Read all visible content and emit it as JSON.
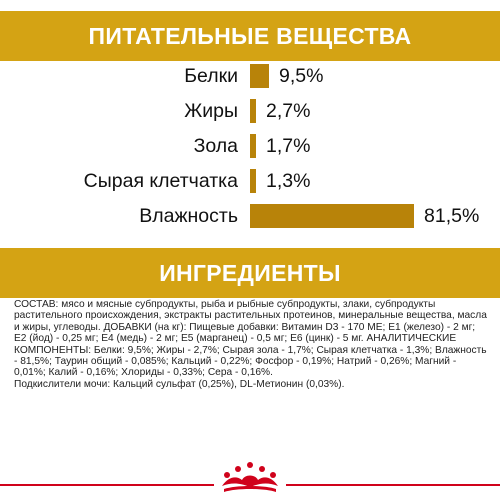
{
  "sections": {
    "nutrients_title": "ПИТАТЕЛЬНЫЕ ВЕЩЕСТВА",
    "ingredients_title": "ИНГРЕДИЕНТЫ"
  },
  "nutrients": [
    {
      "label": "Белки",
      "value_text": "9,5%",
      "value": 9.5
    },
    {
      "label": "Жиры",
      "value_text": "2,7%",
      "value": 2.7
    },
    {
      "label": "Зола",
      "value_text": "1,7%",
      "value": 1.7
    },
    {
      "label": "Сырая клетчатка",
      "value_text": "1,3%",
      "value": 1.3
    },
    {
      "label": "Влажность",
      "value_text": "81,5%",
      "value": 81.5
    }
  ],
  "composition": {
    "main": "СОСТАВ: мясо и мясные субпродукты, рыба и рыбные субпродукты, злаки, субпродукты растительного происхождения, экстракты растительных протеинов, минеральные вещества, масла и жиры, углеводы. ДОБАВКИ (на кг): Пищевые добавки: Витамин D3 - 170 МЕ; Е1 (железо) - 2 мг; Е2 (йод) - 0,25 мг; Е4 (медь) - 2 мг; Е5 (марганец) - 0,5 мг; Е6 (цинк) - 5 мг. АНАЛИТИЧЕСКИЕ КОМПОНЕНТЫ: Белки: 9,5%; Жиры - 2,7%; Сырая зола - 1,7%; Сырая клетчатка - 1,3%; Влажность - 81,5%; Таурин общий - 0,085%; Кальций - 0,22%; Фосфор - 0,19%; Натрий - 0,26%; Магний - 0,01%; Калий - 0,16%; Хлориды - 0,33%; Сера - 0,16%.",
    "acidifiers": "Подкислители мочи: Кальций сульфат (0,25%), DL-Метионин (0,03%)."
  },
  "colors": {
    "banner": "#d4a314",
    "bar": "#b88309",
    "footer_line": "#d0021b"
  },
  "brand": {
    "logo": "royal-canin-crown-logo"
  }
}
